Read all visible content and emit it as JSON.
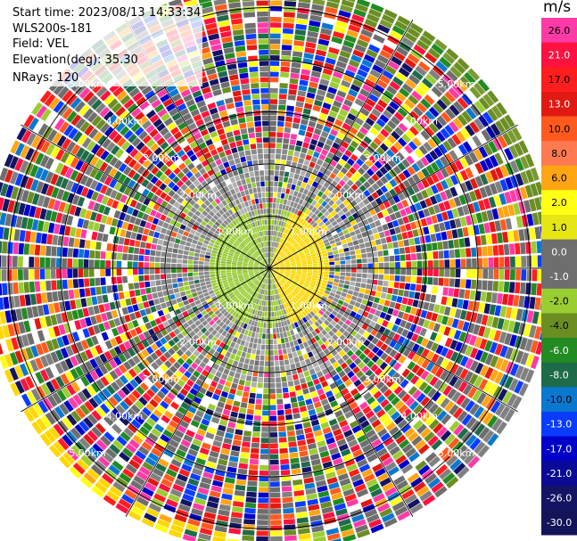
{
  "header": {
    "start_time": "Start time: 2023/08/13 14:33:34",
    "instrument": "WLS200s-181",
    "field": "Field: VEL",
    "elevation": "Elevation(deg): 35.30",
    "nrays": "NRays: 120"
  },
  "chart_data": {
    "type": "heatmap",
    "projection": "polar-ppi",
    "nrays": 120,
    "range_rings_km": [
      1.0,
      2.0,
      3.0,
      4.0,
      5.0
    ],
    "range_ring_labels": [
      "1.00km",
      "2.00km",
      "3.00km",
      "4.00km",
      "5.00km"
    ],
    "max_range_km": 5.5,
    "azimuth_lines": 12,
    "colorbar": {
      "unit": "m/s",
      "ticks": [
        "26.0",
        "21.0",
        "17.0",
        "13.0",
        "10.0",
        "8.0",
        "6.0",
        "2.0",
        "1.0",
        "0.0",
        "-1.0",
        "-2.0",
        "-4.0",
        "-6.0",
        "-8.0",
        "-10.0",
        "-13.0",
        "-17.0",
        "-21.0",
        "-26.0",
        "-30.0"
      ],
      "colors": [
        "#ff3aa6",
        "#ff1140",
        "#ff1e1e",
        "#e01a12",
        "#ff5a1e",
        "#ff7a50",
        "#ffa514",
        "#ffff14",
        "#e6e614",
        "#6e6e6e",
        "#6e6e6e",
        "#9acd32",
        "#6b8e23",
        "#228b22",
        "#1e6b4a",
        "#0b78d0",
        "#0a3cff",
        "#0000c8",
        "#0a0a96",
        "#141464",
        "#14145a"
      ]
    }
  }
}
